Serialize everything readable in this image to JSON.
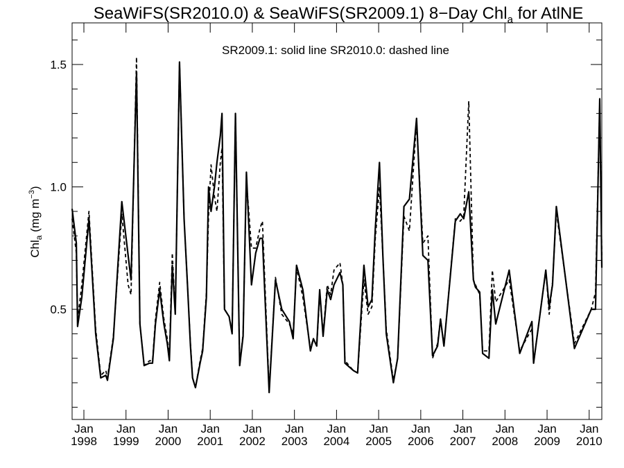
{
  "chart_data": {
    "type": "line",
    "title": {
      "main": "SeaWiFS(SR2010.0) & SeaWiFS(SR2009.1) 8−Day Chl",
      "sub": "a",
      "tail": " for AtlNE"
    },
    "ylabel": {
      "main": "Chl",
      "sub": "a",
      "units_open": " (mg m",
      "sup": "−3",
      "units_close": ")"
    },
    "annotation": "SR2009.1: solid line   SR2010.0: dashed line",
    "xlim": [
      1997.72,
      2010.3
    ],
    "ylim": [
      0.05,
      1.67
    ],
    "yticks": [
      {
        "value": 0.5,
        "label": "0.5"
      },
      {
        "value": 1.0,
        "label": "1.0"
      },
      {
        "value": 1.5,
        "label": "1.5"
      }
    ],
    "yticks_minor": [
      0.1,
      0.2,
      0.3,
      0.4,
      0.6,
      0.7,
      0.8,
      0.9,
      1.1,
      1.2,
      1.3,
      1.4,
      1.6
    ],
    "xticks": [
      {
        "value": 1998,
        "month": "Jan",
        "year": "1998"
      },
      {
        "value": 1999,
        "month": "Jan",
        "year": "1999"
      },
      {
        "value": 2000,
        "month": "Jan",
        "year": "2000"
      },
      {
        "value": 2001,
        "month": "Jan",
        "year": "2001"
      },
      {
        "value": 2002,
        "month": "Jan",
        "year": "2002"
      },
      {
        "value": 2003,
        "month": "Jan",
        "year": "2003"
      },
      {
        "value": 2004,
        "month": "Jan",
        "year": "2004"
      },
      {
        "value": 2005,
        "month": "Jan",
        "year": "2005"
      },
      {
        "value": 2006,
        "month": "Jan",
        "year": "2006"
      },
      {
        "value": 2007,
        "month": "Jan",
        "year": "2007"
      },
      {
        "value": 2008,
        "month": "Jan",
        "year": "2008"
      },
      {
        "value": 2009,
        "month": "Jan",
        "year": "2009"
      },
      {
        "value": 2010,
        "month": "Jan",
        "year": "2010"
      }
    ],
    "series": [
      {
        "style": "solid",
        "points": [
          [
            1997.72,
            0.91
          ],
          [
            1997.82,
            0.77
          ],
          [
            1997.85,
            0.43
          ],
          [
            1997.95,
            0.55
          ],
          [
            1998.12,
            0.87
          ],
          [
            1998.28,
            0.4
          ],
          [
            1998.4,
            0.22
          ],
          [
            1998.52,
            0.23
          ],
          [
            1998.56,
            0.21
          ],
          [
            1998.7,
            0.38
          ],
          [
            1998.9,
            0.94
          ],
          [
            1999.05,
            0.72
          ],
          [
            1999.12,
            0.62
          ],
          [
            1999.25,
            1.47
          ],
          [
            1999.33,
            0.44
          ],
          [
            1999.43,
            0.27
          ],
          [
            1999.56,
            0.28
          ],
          [
            1999.63,
            0.28
          ],
          [
            1999.7,
            0.44
          ],
          [
            1999.8,
            0.58
          ],
          [
            1999.9,
            0.44
          ],
          [
            1999.98,
            0.36
          ],
          [
            2000.03,
            0.29
          ],
          [
            2000.1,
            0.68
          ],
          [
            2000.17,
            0.48
          ],
          [
            2000.27,
            1.51
          ],
          [
            2000.38,
            0.87
          ],
          [
            2000.46,
            0.6
          ],
          [
            2000.53,
            0.35
          ],
          [
            2000.58,
            0.22
          ],
          [
            2000.65,
            0.18
          ],
          [
            2000.76,
            0.28
          ],
          [
            2000.82,
            0.33
          ],
          [
            2000.91,
            0.55
          ],
          [
            2000.96,
            1.0
          ],
          [
            2001.02,
            0.9
          ],
          [
            2001.1,
            1.0
          ],
          [
            2001.16,
            1.1
          ],
          [
            2001.24,
            1.21
          ],
          [
            2001.28,
            1.3
          ],
          [
            2001.34,
            0.5
          ],
          [
            2001.45,
            0.47
          ],
          [
            2001.52,
            0.4
          ],
          [
            2001.6,
            1.3
          ],
          [
            2001.7,
            0.27
          ],
          [
            2001.78,
            0.39
          ],
          [
            2001.86,
            1.06
          ],
          [
            2001.98,
            0.6
          ],
          [
            2002.08,
            0.73
          ],
          [
            2002.18,
            0.79
          ],
          [
            2002.24,
            0.79
          ],
          [
            2002.4,
            0.16
          ],
          [
            2002.55,
            0.62
          ],
          [
            2002.7,
            0.5
          ],
          [
            2002.88,
            0.45
          ],
          [
            2002.97,
            0.38
          ],
          [
            2003.05,
            0.68
          ],
          [
            2003.2,
            0.58
          ],
          [
            2003.38,
            0.33
          ],
          [
            2003.45,
            0.38
          ],
          [
            2003.53,
            0.35
          ],
          [
            2003.6,
            0.58
          ],
          [
            2003.68,
            0.39
          ],
          [
            2003.78,
            0.58
          ],
          [
            2003.86,
            0.54
          ],
          [
            2003.94,
            0.6
          ],
          [
            2004.08,
            0.65
          ],
          [
            2004.15,
            0.6
          ],
          [
            2004.2,
            0.28
          ],
          [
            2004.4,
            0.25
          ],
          [
            2004.5,
            0.24
          ],
          [
            2004.65,
            0.68
          ],
          [
            2004.75,
            0.51
          ],
          [
            2004.84,
            0.54
          ],
          [
            2004.92,
            0.83
          ],
          [
            2005.02,
            1.1
          ],
          [
            2005.1,
            0.72
          ],
          [
            2005.18,
            0.4
          ],
          [
            2005.35,
            0.2
          ],
          [
            2005.45,
            0.3
          ],
          [
            2005.6,
            0.92
          ],
          [
            2005.73,
            0.95
          ],
          [
            2005.9,
            1.28
          ],
          [
            2006.05,
            0.72
          ],
          [
            2006.17,
            0.7
          ],
          [
            2006.28,
            0.31
          ],
          [
            2006.4,
            0.35
          ],
          [
            2006.47,
            0.46
          ],
          [
            2006.55,
            0.35
          ],
          [
            2006.82,
            0.86
          ],
          [
            2006.94,
            0.89
          ],
          [
            2007.02,
            0.87
          ],
          [
            2007.14,
            0.98
          ],
          [
            2007.25,
            0.62
          ],
          [
            2007.3,
            0.59
          ],
          [
            2007.4,
            0.57
          ],
          [
            2007.47,
            0.32
          ],
          [
            2007.62,
            0.3
          ],
          [
            2007.7,
            0.58
          ],
          [
            2007.78,
            0.44
          ],
          [
            2008.1,
            0.66
          ],
          [
            2008.35,
            0.32
          ],
          [
            2008.64,
            0.45
          ],
          [
            2008.68,
            0.28
          ],
          [
            2008.97,
            0.66
          ],
          [
            2009.05,
            0.51
          ],
          [
            2009.13,
            0.6
          ],
          [
            2009.22,
            0.92
          ],
          [
            2009.65,
            0.34
          ],
          [
            2010.05,
            0.5
          ],
          [
            2010.15,
            0.5
          ],
          [
            2010.25,
            1.36
          ],
          [
            2010.3,
            0.67
          ]
        ]
      },
      {
        "style": "dashed",
        "points": [
          [
            1997.72,
            0.87
          ],
          [
            1997.82,
            0.73
          ],
          [
            1997.85,
            0.46
          ],
          [
            1997.95,
            0.6
          ],
          [
            1998.12,
            0.9
          ],
          [
            1998.28,
            0.42
          ],
          [
            1998.4,
            0.23
          ],
          [
            1998.52,
            0.25
          ],
          [
            1998.56,
            0.22
          ],
          [
            1998.7,
            0.39
          ],
          [
            1998.9,
            0.89
          ],
          [
            1999.05,
            0.6
          ],
          [
            1999.12,
            0.56
          ],
          [
            1999.25,
            1.53
          ],
          [
            1999.33,
            0.44
          ],
          [
            1999.43,
            0.27
          ],
          [
            1999.56,
            0.29
          ],
          [
            1999.63,
            0.29
          ],
          [
            1999.7,
            0.46
          ],
          [
            1999.8,
            0.61
          ],
          [
            1999.9,
            0.46
          ],
          [
            1999.98,
            0.38
          ],
          [
            2000.03,
            0.31
          ],
          [
            2000.1,
            0.73
          ],
          [
            2000.17,
            0.48
          ],
          [
            2000.27,
            1.51
          ],
          [
            2000.38,
            0.87
          ],
          [
            2000.46,
            0.6
          ],
          [
            2000.53,
            0.36
          ],
          [
            2000.58,
            0.22
          ],
          [
            2000.65,
            0.18
          ],
          [
            2000.76,
            0.29
          ],
          [
            2000.82,
            0.34
          ],
          [
            2000.91,
            0.57
          ],
          [
            2000.96,
            0.88
          ],
          [
            2001.02,
            1.09
          ],
          [
            2001.1,
            0.96
          ],
          [
            2001.16,
            0.9
          ],
          [
            2001.24,
            1.1
          ],
          [
            2001.28,
            1.16
          ],
          [
            2001.34,
            0.5
          ],
          [
            2001.45,
            0.47
          ],
          [
            2001.52,
            0.41
          ],
          [
            2001.6,
            1.3
          ],
          [
            2001.7,
            0.27
          ],
          [
            2001.78,
            0.4
          ],
          [
            2001.86,
            1.03
          ],
          [
            2001.98,
            0.75
          ],
          [
            2002.08,
            0.75
          ],
          [
            2002.18,
            0.83
          ],
          [
            2002.24,
            0.86
          ],
          [
            2002.4,
            0.17
          ],
          [
            2002.55,
            0.63
          ],
          [
            2002.7,
            0.48
          ],
          [
            2002.88,
            0.44
          ],
          [
            2002.97,
            0.4
          ],
          [
            2003.05,
            0.67
          ],
          [
            2003.2,
            0.55
          ],
          [
            2003.38,
            0.34
          ],
          [
            2003.45,
            0.38
          ],
          [
            2003.53,
            0.35
          ],
          [
            2003.6,
            0.56
          ],
          [
            2003.68,
            0.4
          ],
          [
            2003.78,
            0.6
          ],
          [
            2003.86,
            0.56
          ],
          [
            2003.94,
            0.66
          ],
          [
            2004.08,
            0.69
          ],
          [
            2004.15,
            0.6
          ],
          [
            2004.2,
            0.29
          ],
          [
            2004.4,
            0.25
          ],
          [
            2004.5,
            0.24
          ],
          [
            2004.65,
            0.62
          ],
          [
            2004.75,
            0.48
          ],
          [
            2004.84,
            0.51
          ],
          [
            2004.92,
            0.79
          ],
          [
            2005.02,
            1.0
          ],
          [
            2005.1,
            0.72
          ],
          [
            2005.18,
            0.42
          ],
          [
            2005.35,
            0.21
          ],
          [
            2005.45,
            0.3
          ],
          [
            2005.6,
            0.88
          ],
          [
            2005.73,
            0.82
          ],
          [
            2005.9,
            1.27
          ],
          [
            2006.05,
            0.77
          ],
          [
            2006.17,
            0.8
          ],
          [
            2006.28,
            0.3
          ],
          [
            2006.4,
            0.36
          ],
          [
            2006.47,
            0.46
          ],
          [
            2006.55,
            0.35
          ],
          [
            2006.82,
            0.87
          ],
          [
            2006.94,
            0.86
          ],
          [
            2007.02,
            0.88
          ],
          [
            2007.14,
            1.35
          ],
          [
            2007.25,
            0.62
          ],
          [
            2007.3,
            0.6
          ],
          [
            2007.4,
            0.56
          ],
          [
            2007.47,
            0.33
          ],
          [
            2007.62,
            0.33
          ],
          [
            2007.7,
            0.66
          ],
          [
            2007.78,
            0.53
          ],
          [
            2008.1,
            0.62
          ],
          [
            2008.35,
            0.33
          ],
          [
            2008.64,
            0.42
          ],
          [
            2008.68,
            0.28
          ],
          [
            2008.97,
            0.66
          ],
          [
            2009.05,
            0.48
          ],
          [
            2009.13,
            0.61
          ],
          [
            2009.22,
            0.9
          ],
          [
            2009.65,
            0.36
          ],
          [
            2010.05,
            0.5
          ],
          [
            2010.15,
            0.57
          ],
          [
            2010.25,
            1.34
          ],
          [
            2010.3,
            0.72
          ]
        ]
      }
    ]
  }
}
